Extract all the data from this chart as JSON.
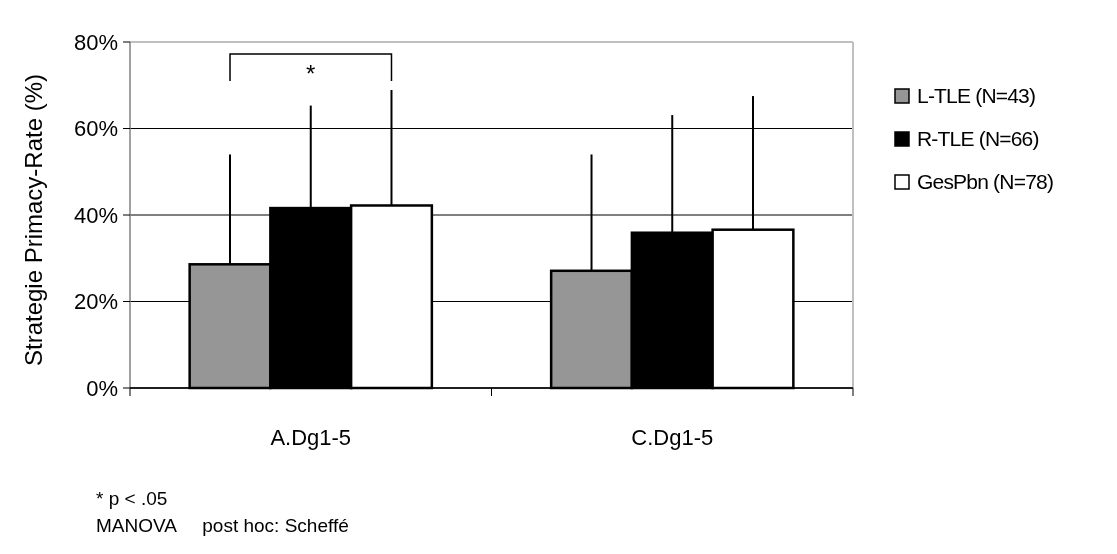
{
  "chart_data": {
    "type": "bar",
    "ylabel": "Strategie Primacy-Rate (%)",
    "categories": [
      "A.Dg1-5",
      "C.Dg1-5"
    ],
    "series": [
      {
        "name": "L-TLE (N=43)",
        "color": "#969696",
        "values": [
          28.6,
          27.1
        ],
        "errors": [
          [
            28.6,
            54
          ],
          [
            27.1,
            54
          ]
        ]
      },
      {
        "name": "R-TLE (N=66)",
        "color": "#000000",
        "values": [
          41.6,
          35.9
        ],
        "errors": [
          [
            41.6,
            65.3
          ],
          [
            35.9,
            63.1
          ]
        ]
      },
      {
        "name": "GesPbn (N=78)",
        "color": "#ffffff",
        "values": [
          42.2,
          36.6
        ],
        "errors": [
          [
            42.2,
            68.9
          ],
          [
            36.6,
            67.5
          ]
        ]
      }
    ],
    "ylim": [
      0,
      80
    ],
    "yticks": [
      {
        "value": 0,
        "label": "0%"
      },
      {
        "value": 20,
        "label": "20%"
      },
      {
        "value": 40,
        "label": "40%"
      },
      {
        "value": 60,
        "label": "60%"
      },
      {
        "value": 80,
        "label": "80%"
      }
    ],
    "grid": "y",
    "legend": "right",
    "annotations": [
      "*",
      "* p < .05",
      "MANOVA     post hoc: Scheffé"
    ]
  }
}
